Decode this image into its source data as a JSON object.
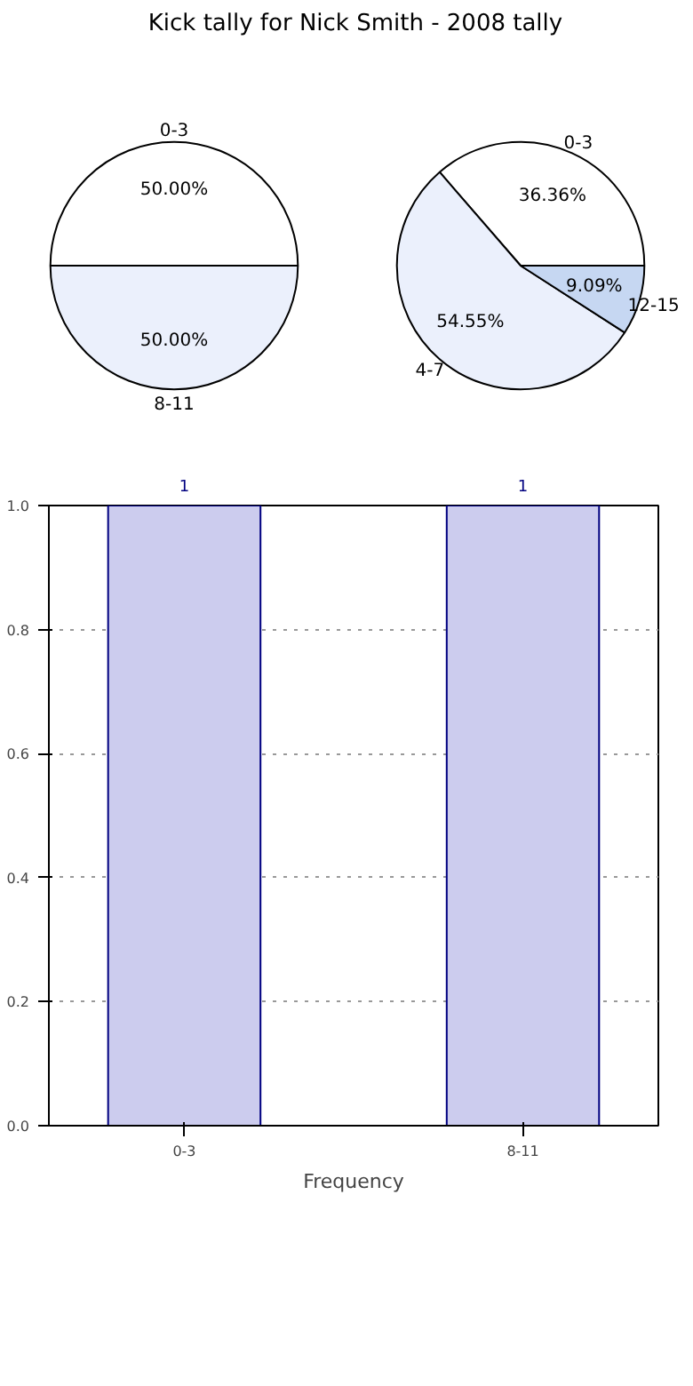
{
  "chart_data": [
    {
      "type": "pie",
      "title": "Kick tally for Nick Smith - 2008 tally",
      "categories": [
        "0-3",
        "8-11"
      ],
      "values": [
        50,
        50
      ],
      "colors": [
        "#ffffff",
        "#ebf0fc"
      ],
      "value_labels": [
        "50.00%",
        "50.00%"
      ]
    },
    {
      "type": "pie",
      "categories": [
        "0-3",
        "4-7",
        "12-15"
      ],
      "values": [
        36.36,
        54.55,
        9.09
      ],
      "colors": [
        "#ffffff",
        "#ebf0fc",
        "#c6d7f2"
      ],
      "value_labels": [
        "36.36%",
        "54.55%",
        "9.09%"
      ]
    },
    {
      "type": "bar",
      "categories": [
        "0-3",
        "8-11"
      ],
      "values": [
        1,
        1
      ],
      "color": "#ccccee",
      "xlabel": "Frequency",
      "ylim": [
        0,
        1
      ],
      "yticks": [
        {
          "value": 0,
          "label": "0.0"
        },
        {
          "value": 0.2,
          "label": "0.2"
        },
        {
          "value": 0.4,
          "label": "0.4"
        },
        {
          "value": 0.6,
          "label": "0.6"
        },
        {
          "value": 0.8,
          "label": "0.8"
        },
        {
          "value": 1,
          "label": "1.0"
        }
      ],
      "grid": true,
      "data_labels": true
    }
  ]
}
